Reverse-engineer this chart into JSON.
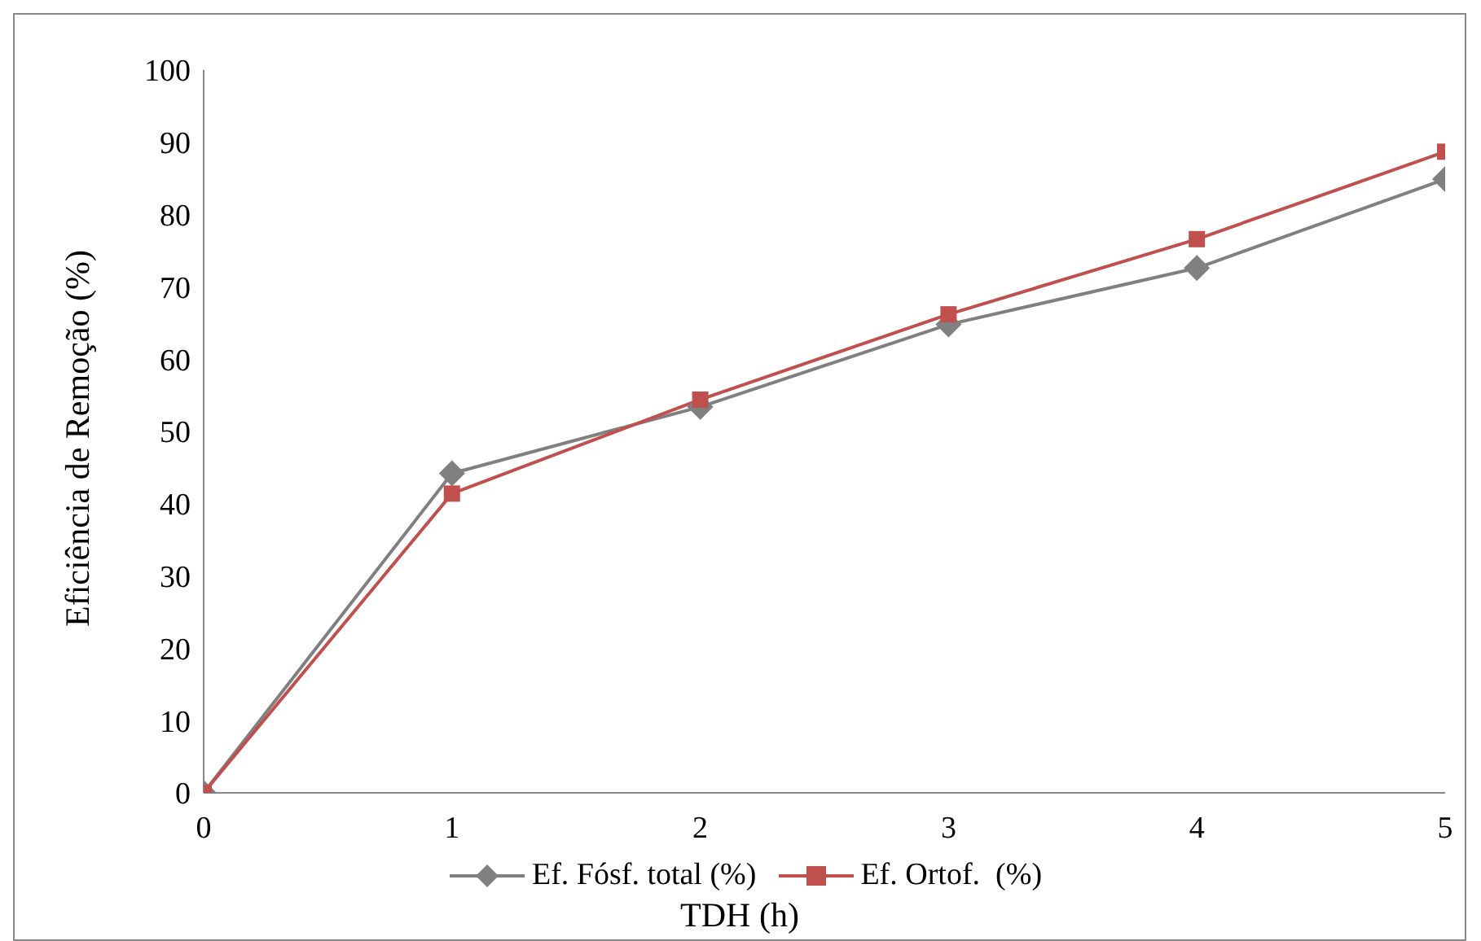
{
  "chart_data": {
    "type": "line",
    "xlabel": "TDH (h)",
    "ylabel": "Eficiência de Remoção (%)",
    "x": [
      0,
      1,
      2,
      3,
      4,
      5
    ],
    "series": [
      {
        "name": "Ef. Fósf. total (%)",
        "color": "#808080",
        "marker": "diamond",
        "values": [
          0,
          44.2,
          53.4,
          64.8,
          72.6,
          84.9
        ]
      },
      {
        "name": "Ef. Ortof.  (%)",
        "color": "#c0504d",
        "marker": "square",
        "values": [
          0,
          41.4,
          54.4,
          66.2,
          76.6,
          88.7
        ]
      }
    ],
    "xlim": [
      0,
      5
    ],
    "xticks": [
      0,
      1,
      2,
      3,
      4,
      5
    ],
    "ylim": [
      0,
      100
    ],
    "yticks": [
      0,
      10,
      20,
      30,
      40,
      50,
      60,
      70,
      80,
      90,
      100
    ],
    "grid": false,
    "legend": "bottom"
  }
}
